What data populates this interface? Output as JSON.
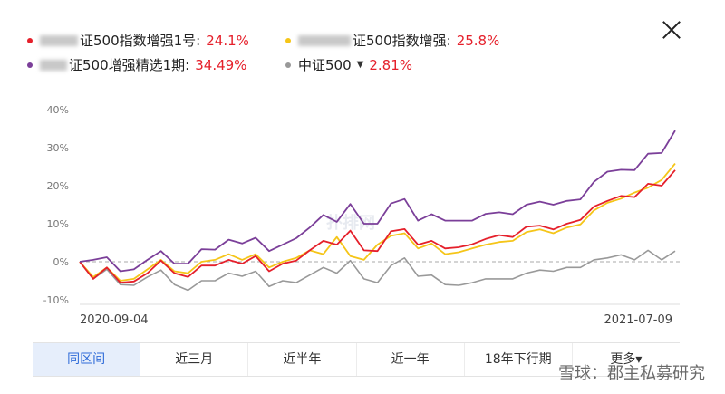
{
  "legend": [
    {
      "key": "s1",
      "label": "证500指数增强1号:",
      "value": "24.1%",
      "color": "#e5202b",
      "row": 0,
      "col": 0
    },
    {
      "key": "s2",
      "label": "证500指数增强:",
      "value": "25.8%",
      "color": "#f5c518",
      "row": 0,
      "col": 1
    },
    {
      "key": "s3",
      "label": "证500增强精选1期:",
      "value": "34.49%",
      "color": "#7b3f99",
      "row": 1,
      "col": 0
    },
    {
      "key": "s4",
      "label": "中证500",
      "value": "2.81%",
      "color": "#999999",
      "row": 1,
      "col": 1,
      "dropdown": "▼"
    }
  ],
  "tabs": [
    "同区间",
    "近三月",
    "近半年",
    "近一年",
    "18年下行期",
    "更多▾"
  ],
  "active_tab": 0,
  "watermark": "雪球：郡主私募研究",
  "faint_watermark": "扑排网",
  "close_icon": "close-icon",
  "chart_data": {
    "type": "line",
    "xlabel": "",
    "ylabel": "",
    "x_start_label": "2020-09-04",
    "x_end_label": "2021-07-09",
    "y_ticks": [
      "40%",
      "30%",
      "20%",
      "10%",
      "0%",
      "-10%"
    ],
    "y_tick_values": [
      40,
      30,
      20,
      10,
      0,
      -10
    ],
    "ylim": [
      -10,
      40
    ],
    "zero_line": "dashed",
    "series": [
      {
        "name": "证500增强精选1期",
        "color": "#7b3f99",
        "values": [
          0,
          0.5,
          1.2,
          -2.5,
          -2,
          0.5,
          2.8,
          -0.5,
          -0.5,
          3.3,
          3.2,
          5.8,
          4.8,
          6.3,
          2.8,
          4.5,
          6.2,
          9,
          12.3,
          10.5,
          15.2,
          10,
          10,
          15.3,
          16.5,
          10.8,
          12.5,
          10.8,
          10.8,
          10.8,
          12.6,
          13,
          12.5,
          15,
          15.8,
          15,
          16,
          16.4,
          21,
          23.7,
          24.2,
          24.1,
          28.4,
          28.6,
          34.5
        ]
      },
      {
        "name": "证500指数增强",
        "color": "#f5c518",
        "values": [
          0,
          -4,
          -1.5,
          -5,
          -4.5,
          -2,
          0.5,
          -2.5,
          -3,
          0,
          0.5,
          2,
          0.5,
          2,
          -1.5,
          0,
          1,
          3,
          2,
          6.5,
          1.5,
          0.5,
          4.5,
          6.8,
          7.5,
          3.5,
          4.8,
          2,
          2.5,
          3.5,
          4.5,
          5.2,
          5.5,
          7.8,
          8.5,
          7.5,
          9,
          9.8,
          13.5,
          15.5,
          16.6,
          18.2,
          19.5,
          21.5,
          25.8
        ]
      },
      {
        "name": "证500指数增强1号",
        "color": "#e5202b",
        "values": [
          0,
          -4.5,
          -1.5,
          -5.5,
          -5.2,
          -3,
          0.3,
          -3,
          -4,
          -1,
          -1,
          0.5,
          -0.5,
          1.5,
          -2.5,
          -0.5,
          0.3,
          3,
          5.5,
          4.5,
          8.2,
          3,
          2.8,
          8,
          8.6,
          4.5,
          5.5,
          3.5,
          3.8,
          4.6,
          6,
          7,
          6.5,
          9.2,
          9.5,
          8.5,
          10,
          11,
          14.5,
          16,
          17.3,
          17,
          20.5,
          20,
          24.1
        ]
      },
      {
        "name": "中证500",
        "color": "#999999",
        "values": [
          0,
          -4.5,
          -2,
          -6,
          -6.2,
          -4,
          -2.2,
          -6,
          -7.5,
          -5,
          -5,
          -3,
          -3.8,
          -2.5,
          -6.5,
          -5,
          -5.5,
          -3.5,
          -1.5,
          -3,
          0.3,
          -4.5,
          -5.5,
          -1,
          1,
          -3.8,
          -3.5,
          -6,
          -6.2,
          -5.5,
          -4.5,
          -4.5,
          -4.5,
          -3,
          -2.2,
          -2.5,
          -1.5,
          -1.5,
          0.5,
          1,
          1.8,
          0.5,
          3,
          0.5,
          2.8
        ]
      }
    ]
  }
}
